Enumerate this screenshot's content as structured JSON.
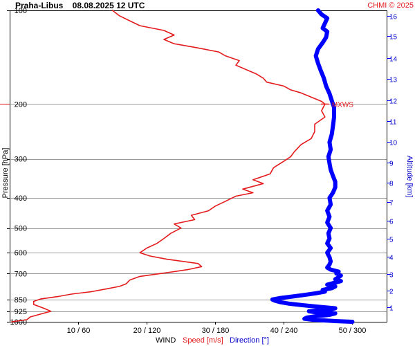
{
  "header": {
    "title": "Praha-Libus    08.08.2025 12 UTC",
    "credit": "CHMI © 2025"
  },
  "chart_data": {
    "type": "line",
    "grid": true,
    "y_left": {
      "label": "Pressure [hPa]",
      "scale": "log",
      "range": [
        1000,
        100
      ],
      "ticks": [
        100,
        200,
        300,
        400,
        500,
        600,
        700,
        850,
        925,
        1000
      ]
    },
    "y_right": {
      "label": "Altitude [km]",
      "ticks": [
        1,
        2,
        3,
        4,
        5,
        6,
        7,
        8,
        9,
        10,
        11,
        12,
        13,
        14,
        15,
        16
      ],
      "tick_pressure_hPa": [
        899,
        795,
        701,
        617,
        541,
        473,
        412,
        357,
        308,
        265,
        227,
        194,
        166,
        142,
        121,
        104
      ]
    },
    "x_axis": {
      "wind_label": "WIND",
      "speed_label": "Speed [m/s]",
      "direction_label": "Direction [°]",
      "speed_range": [
        0,
        55
      ],
      "direction_range": [
        0,
        330
      ],
      "ticks": [
        {
          "speed": 10,
          "direction": 60,
          "label": "10 / 60"
        },
        {
          "speed": 20,
          "direction": 120,
          "label": "20 / 120"
        },
        {
          "speed": 30,
          "direction": 180,
          "label": "30 / 180"
        },
        {
          "speed": 40,
          "direction": 240,
          "label": "40 / 240"
        },
        {
          "speed": 50,
          "direction": 300,
          "label": "50 / 300"
        }
      ]
    },
    "annotations": [
      {
        "label": "MXWS",
        "pressure": 200,
        "speed": 46
      }
    ],
    "series": [
      {
        "name": "Speed [m/s]",
        "unit": "m/s",
        "color": "#e41a1c",
        "points": [
          [
            1000,
            0.3
          ],
          [
            985,
            2.5
          ],
          [
            965,
            3
          ],
          [
            945,
            4.5
          ],
          [
            925,
            6
          ],
          [
            905,
            5
          ],
          [
            880,
            3.5
          ],
          [
            860,
            3.5
          ],
          [
            845,
            4.5
          ],
          [
            830,
            7
          ],
          [
            815,
            9
          ],
          [
            800,
            12
          ],
          [
            785,
            14
          ],
          [
            770,
            16
          ],
          [
            755,
            17
          ],
          [
            735,
            17.5
          ],
          [
            715,
            19
          ],
          [
            700,
            22
          ],
          [
            690,
            24
          ],
          [
            680,
            26
          ],
          [
            665,
            28
          ],
          [
            650,
            27.5
          ],
          [
            630,
            23
          ],
          [
            615,
            20.5
          ],
          [
            600,
            19
          ],
          [
            580,
            20
          ],
          [
            560,
            21.5
          ],
          [
            540,
            22.5
          ],
          [
            520,
            23.5
          ],
          [
            500,
            25
          ],
          [
            485,
            24
          ],
          [
            470,
            27
          ],
          [
            455,
            26.5
          ],
          [
            440,
            29
          ],
          [
            425,
            30
          ],
          [
            410,
            31.5
          ],
          [
            395,
            33
          ],
          [
            385,
            35.5
          ],
          [
            375,
            34
          ],
          [
            360,
            37
          ],
          [
            350,
            35.5
          ],
          [
            335,
            38
          ],
          [
            320,
            38.5
          ],
          [
            305,
            40
          ],
          [
            295,
            41
          ],
          [
            285,
            41.5
          ],
          [
            270,
            42.5
          ],
          [
            258,
            44
          ],
          [
            245,
            44.5
          ],
          [
            232,
            44.5
          ],
          [
            220,
            46
          ],
          [
            210,
            45.5
          ],
          [
            200,
            46
          ],
          [
            196,
            45.5
          ],
          [
            190,
            44
          ],
          [
            184,
            42.5
          ],
          [
            180,
            41
          ],
          [
            175,
            40
          ],
          [
            170,
            37.5
          ],
          [
            165,
            37
          ],
          [
            160,
            36
          ],
          [
            155,
            34.5
          ],
          [
            150,
            33
          ],
          [
            145,
            33.5
          ],
          [
            140,
            31.5
          ],
          [
            136,
            30.5
          ],
          [
            132,
            27.5
          ],
          [
            128,
            24
          ],
          [
            124,
            22.5
          ],
          [
            120,
            24
          ],
          [
            116,
            22.5
          ],
          [
            112,
            19
          ],
          [
            108,
            17.5
          ],
          [
            104,
            16
          ],
          [
            100,
            15
          ]
        ]
      },
      {
        "name": "Direction [°]",
        "unit": "°",
        "color": "#0000ff",
        "points": [
          [
            1000,
            300
          ],
          [
            995,
            285
          ],
          [
            990,
            275
          ],
          [
            985,
            265
          ],
          [
            978,
            258
          ],
          [
            970,
            260
          ],
          [
            960,
            268
          ],
          [
            950,
            280
          ],
          [
            940,
            285
          ],
          [
            935,
            270
          ],
          [
            925,
            262
          ],
          [
            915,
            280
          ],
          [
            905,
            285
          ],
          [
            895,
            270
          ],
          [
            885,
            257
          ],
          [
            875,
            245
          ],
          [
            865,
            237
          ],
          [
            855,
            232
          ],
          [
            848,
            230
          ],
          [
            840,
            236
          ],
          [
            830,
            247
          ],
          [
            820,
            258
          ],
          [
            810,
            268
          ],
          [
            800,
            276
          ],
          [
            790,
            274
          ],
          [
            780,
            282
          ],
          [
            770,
            285
          ],
          [
            760,
            278
          ],
          [
            750,
            284
          ],
          [
            740,
            290
          ],
          [
            730,
            285
          ],
          [
            720,
            288
          ],
          [
            710,
            290
          ],
          [
            700,
            286
          ],
          [
            690,
            288
          ],
          [
            680,
            281
          ],
          [
            670,
            278
          ],
          [
            655,
            280
          ],
          [
            640,
            281
          ],
          [
            620,
            280
          ],
          [
            600,
            278
          ],
          [
            580,
            281
          ],
          [
            560,
            278
          ],
          [
            540,
            280
          ],
          [
            520,
            279
          ],
          [
            500,
            281
          ],
          [
            480,
            278
          ],
          [
            460,
            280
          ],
          [
            440,
            278
          ],
          [
            420,
            281
          ],
          [
            400,
            280
          ],
          [
            385,
            283
          ],
          [
            370,
            285
          ],
          [
            355,
            285
          ],
          [
            340,
            283
          ],
          [
            325,
            281
          ],
          [
            310,
            280
          ],
          [
            295,
            279
          ],
          [
            280,
            281
          ],
          [
            265,
            280
          ],
          [
            250,
            282
          ],
          [
            235,
            283
          ],
          [
            220,
            284
          ],
          [
            205,
            284
          ],
          [
            195,
            282
          ],
          [
            185,
            280
          ],
          [
            175,
            277
          ],
          [
            165,
            275
          ],
          [
            155,
            272
          ],
          [
            148,
            270
          ],
          [
            140,
            268
          ],
          [
            133,
            270
          ],
          [
            127,
            274
          ],
          [
            122,
            277
          ],
          [
            117,
            278
          ],
          [
            114,
            274
          ],
          [
            110,
            276
          ],
          [
            106,
            278
          ],
          [
            103,
            273
          ],
          [
            100,
            270
          ]
        ]
      }
    ]
  }
}
